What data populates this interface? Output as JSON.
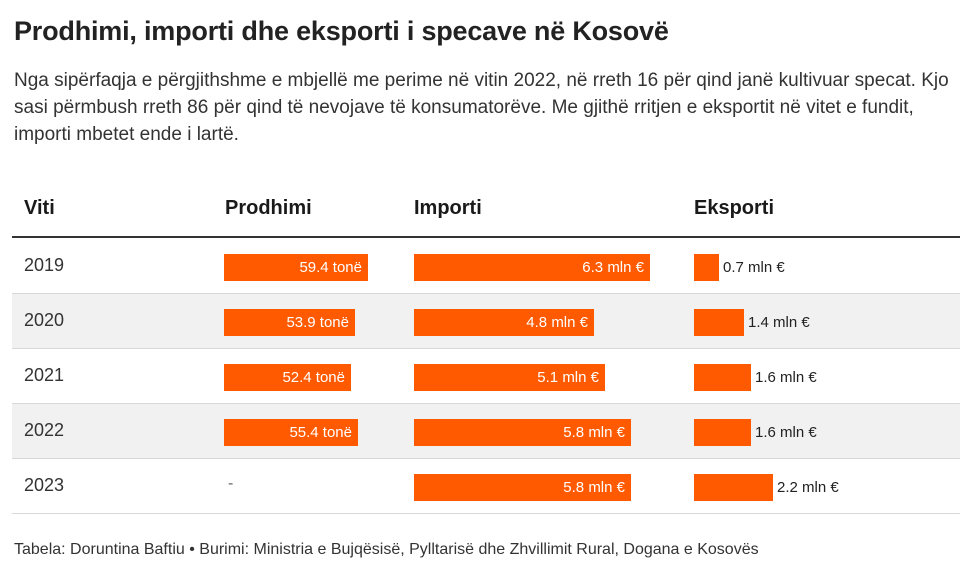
{
  "title": "Prodhimi, importi dhe eksporti i specave në Kosovë",
  "subtitle": "Nga sipërfaqja e përgjithshme e mbjellë me perime në vitin 2022, në rreth 16 për qind janë kultivuar specat. Kjo sasi përmbush rreth 86 për qind të nevojave të konsumatorëve. Me gjithë rritjen e eksportit në vitet e fundit, importi mbetet ende i lartë.",
  "footer": "Tabela: Doruntina Baftiu • Burimi: Ministria e Bujqësisë, Pylltarisë dhe Zhvillimit Rural, Dogana e Kosovës",
  "bar_color": "#ff5a00",
  "chart_data": {
    "type": "table",
    "columns": [
      "Viti",
      "Prodhimi",
      "Importi",
      "Eksporti"
    ],
    "rows": [
      {
        "year": "2019",
        "production": 59.4,
        "production_label": "59.4 tonë",
        "import": 6.3,
        "import_label": "6.3 mln €",
        "export": 0.7,
        "export_label": "0.7 mln €"
      },
      {
        "year": "2020",
        "production": 53.9,
        "production_label": "53.9 tonë",
        "import": 4.8,
        "import_label": "4.8 mln €",
        "export": 1.4,
        "export_label": "1.4 mln €"
      },
      {
        "year": "2021",
        "production": 52.4,
        "production_label": "52.4 tonë",
        "import": 5.1,
        "import_label": "5.1 mln €",
        "export": 1.6,
        "export_label": "1.6 mln €"
      },
      {
        "year": "2022",
        "production": 55.4,
        "production_label": "55.4 tonë",
        "import": 5.8,
        "import_label": "5.8 mln €",
        "export": 1.6,
        "export_label": "1.6 mln €"
      },
      {
        "year": "2023",
        "production": null,
        "production_label": "-",
        "import": 5.8,
        "import_label": "5.8 mln €",
        "export": 2.2,
        "export_label": "2.2 mln €"
      }
    ]
  }
}
